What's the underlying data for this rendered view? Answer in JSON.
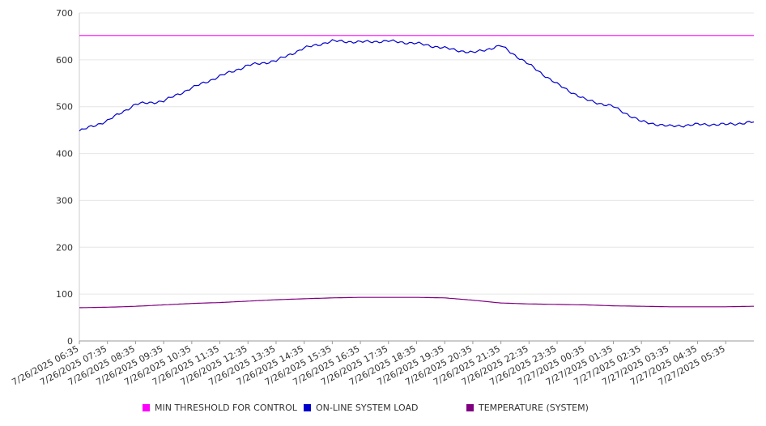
{
  "chart_data": {
    "type": "line",
    "title": "",
    "xlabel": "",
    "ylabel": "",
    "ylim": [
      0,
      700
    ],
    "yticks": [
      0,
      100,
      200,
      300,
      400,
      500,
      600,
      700
    ],
    "grid": true,
    "legend_position": "bottom",
    "x_interval_minutes": 5,
    "x_tick_labels": [
      "7/26/2025 06:35",
      "7/26/2025 07:35",
      "7/26/2025 08:35",
      "7/26/2025 09:35",
      "7/26/2025 10:35",
      "7/26/2025 11:35",
      "7/26/2025 12:35",
      "7/26/2025 13:35",
      "7/26/2025 14:35",
      "7/26/2025 15:35",
      "7/26/2025 16:35",
      "7/26/2025 17:35",
      "7/26/2025 18:35",
      "7/26/2025 19:35",
      "7/26/2025 20:35",
      "7/26/2025 21:35",
      "7/26/2025 22:35",
      "7/26/2025 23:35",
      "7/27/2025 00:35",
      "7/27/2025 01:35",
      "7/27/2025 02:35",
      "7/27/2025 03:35",
      "7/27/2025 04:35",
      "7/27/2025 05:35"
    ],
    "series": [
      {
        "name": "MIN THRESHOLD FOR CONTROL",
        "color": "#ff00ff",
        "values": [
          652,
          652,
          652,
          652,
          652,
          652,
          652,
          652,
          652,
          652,
          652,
          652,
          652,
          652,
          652,
          652,
          652,
          652,
          652,
          652,
          652,
          652,
          652,
          652,
          652
        ]
      },
      {
        "name": "ON-LINE SYSTEM LOAD",
        "color": "#0000cc",
        "values": [
          448,
          470,
          505,
          512,
          540,
          565,
          588,
          598,
          625,
          640,
          638,
          640,
          635,
          625,
          615,
          630,
          590,
          548,
          515,
          500,
          468,
          458,
          462,
          462,
          467
        ]
      },
      {
        "name": "TEMPERATURE (SYSTEM)",
        "color": "#800080",
        "values": [
          71,
          72,
          74,
          77,
          80,
          82,
          85,
          88,
          90,
          92,
          93,
          93,
          93,
          92,
          87,
          81,
          79,
          78,
          77,
          75,
          74,
          73,
          73,
          73,
          74
        ]
      }
    ]
  }
}
